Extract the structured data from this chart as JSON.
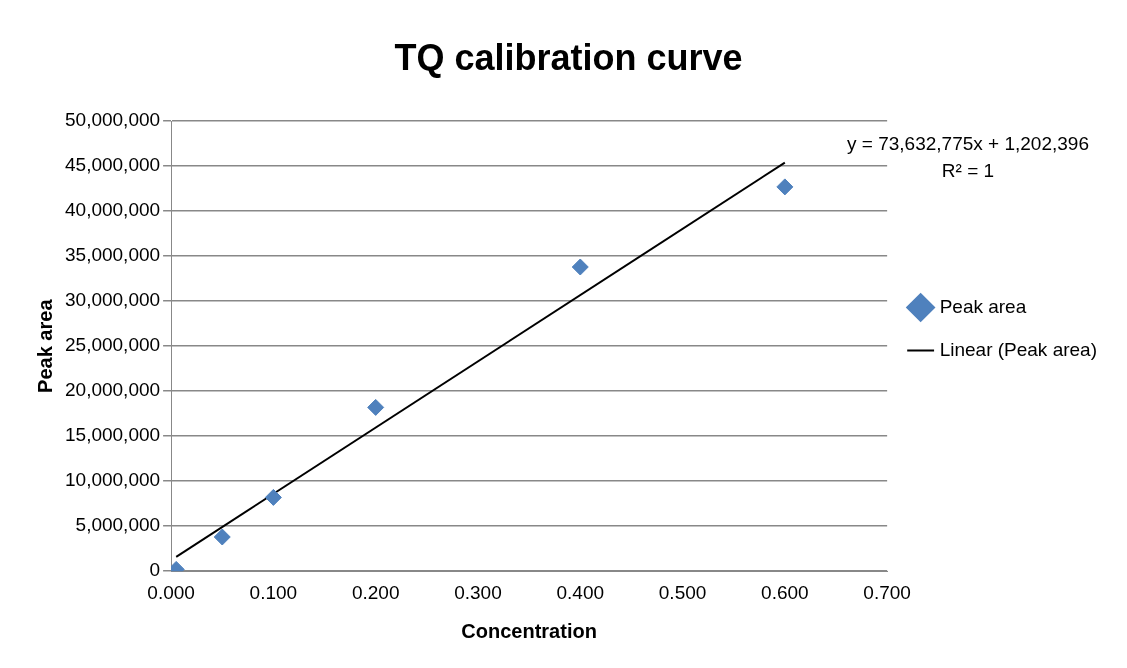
{
  "chart_data": {
    "type": "scatter",
    "title": "TQ calibration curve",
    "xlabel": "Concentration",
    "ylabel": "Peak area",
    "series": [
      {
        "name": "Peak area",
        "marker": "diamond",
        "color": "#4f81bd",
        "x": [
          0.005,
          0.05,
          0.1,
          0.2,
          0.4,
          0.6
        ],
        "values": [
          200000,
          3800000,
          8200000,
          18200000,
          33800000,
          42700000
        ]
      },
      {
        "name": "Linear (Peak area)",
        "type": "line",
        "marker": "none",
        "color": "#000000",
        "x": [
          0.005,
          0.6
        ],
        "values": [
          1600000,
          45400000
        ]
      }
    ],
    "xlim": [
      0,
      0.7
    ],
    "ylim": [
      0,
      50000000
    ],
    "xticks": [
      {
        "value": 0,
        "label": "0.000"
      },
      {
        "value": 0.1,
        "label": "0.100"
      },
      {
        "value": 0.2,
        "label": "0.200"
      },
      {
        "value": 0.3,
        "label": "0.300"
      },
      {
        "value": 0.4,
        "label": "0.400"
      },
      {
        "value": 0.5,
        "label": "0.500"
      },
      {
        "value": 0.6,
        "label": "0.600"
      },
      {
        "value": 0.7,
        "label": "0.700"
      }
    ],
    "yticks": [
      0,
      {
        "value": 5000000,
        "label": "5,000,000"
      },
      {
        "value": 10000000,
        "label": "10,000,000"
      },
      {
        "value": 15000000,
        "label": "15,000,000"
      },
      {
        "value": 20000000,
        "label": "20,000,000"
      },
      {
        "value": 25000000,
        "label": "25,000,000"
      },
      {
        "value": 30000000,
        "label": "30,000,000"
      },
      {
        "value": 35000000,
        "label": "35,000,000"
      },
      {
        "value": 40000000,
        "label": "40,000,000"
      },
      {
        "value": 45000000,
        "label": "45,000,000"
      },
      {
        "value": 50000000,
        "label": "50,000,000"
      }
    ],
    "grid": "y",
    "legend": "right",
    "line_style": "solid",
    "annotations": [
      "y = 73,632,775x + 1,202,396",
      "R² = 1"
    ]
  }
}
